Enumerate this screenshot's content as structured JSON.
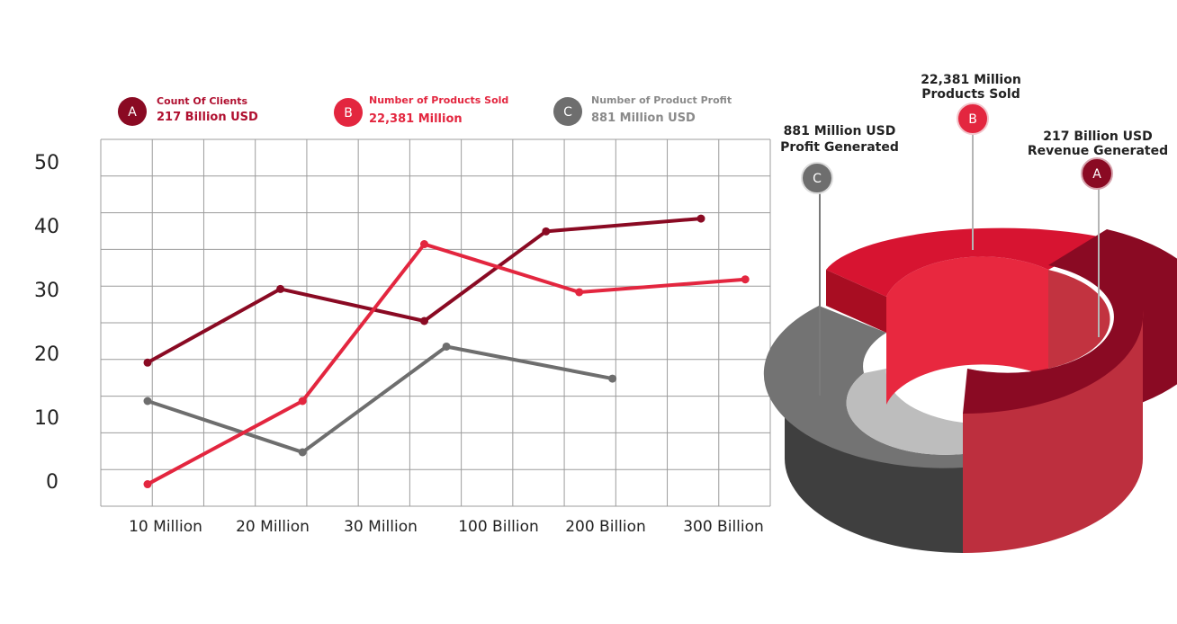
{
  "colors": {
    "series_a": "#8a0a23",
    "series_b": "#e3263f",
    "series_c": "#6e6e6e",
    "grid": "#9c9c9c"
  },
  "legend": [
    {
      "letter": "A",
      "title": "Count Of Clients",
      "value": "217  Billion USD"
    },
    {
      "letter": "B",
      "title": "Number of Products Sold",
      "value": "22,381 Million"
    },
    {
      "letter": "C",
      "title": "Number of Product Profit",
      "value": "881 Million USD"
    }
  ],
  "chart_data": [
    {
      "type": "line",
      "categories": [
        "10 Million",
        "20 Million",
        "30 Million",
        "100 Billion",
        "200 Billion",
        "300 Billion"
      ],
      "yticks": [
        0,
        10,
        20,
        30,
        40,
        50
      ],
      "ylim": [
        0,
        50
      ],
      "grid": true,
      "legend_position": "top",
      "series": [
        {
          "letter": "A",
          "name": "Count Of Clients",
          "x": [
            0,
            1.2,
            2.5,
            3.6,
            5
          ],
          "y": [
            18.5,
            30,
            25,
            39,
            41
          ]
        },
        {
          "letter": "B",
          "name": "Number of Products Sold",
          "x": [
            0,
            1.4,
            2.5,
            3.9,
            5.4
          ],
          "y": [
            -0.5,
            12.5,
            37,
            29.5,
            31.5
          ]
        },
        {
          "letter": "C",
          "name": "Number of Product Profit",
          "x": [
            0,
            1.4,
            2.7,
            4.2
          ],
          "y": [
            12.5,
            4.5,
            21,
            16
          ]
        }
      ]
    },
    {
      "type": "pie",
      "style": "3d-donut",
      "slices": [
        {
          "letter": "A",
          "label_line1": "217  Billion USD",
          "label_line2": "Revenue Generated",
          "value": 35
        },
        {
          "letter": "B",
          "label_line1": "22,381 Million",
          "label_line2": "Products Sold",
          "value": 40
        },
        {
          "letter": "C",
          "label_line1": "881 Million USD",
          "label_line2": "Profit Generated",
          "value": 25
        }
      ]
    }
  ]
}
